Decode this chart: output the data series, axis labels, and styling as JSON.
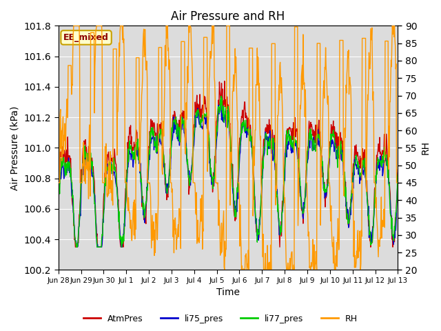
{
  "title": "Air Pressure and RH",
  "xlabel": "Time",
  "ylabel_left": "Air Pressure (kPa)",
  "ylabel_right": "RH",
  "ylim_left": [
    100.2,
    101.8
  ],
  "ylim_right": [
    20,
    90
  ],
  "yticks_left": [
    100.2,
    100.4,
    100.6,
    100.8,
    101.0,
    101.2,
    101.4,
    101.6,
    101.8
  ],
  "yticks_right": [
    20,
    25,
    30,
    35,
    40,
    45,
    50,
    55,
    60,
    65,
    70,
    75,
    80,
    85,
    90
  ],
  "bg_color": "#dcdcdc",
  "annotation_text": "EE_mixed",
  "annotation_color": "#8B0000",
  "annotation_bg": "#ffffcc",
  "annotation_border": "#c8a000",
  "legend_items": [
    "AtmPres",
    "li75_pres",
    "li77_pres",
    "RH"
  ],
  "legend_colors": [
    "#cc0000",
    "#0000cc",
    "#00cc00",
    "#ff9900"
  ],
  "line_colors": {
    "AtmPres": "#cc0000",
    "li75_pres": "#0000cc",
    "li77_pres": "#00cc00",
    "RH": "#ff9900"
  },
  "x_tick_labels": [
    "Jun 28",
    "Jun 29",
    "Jun 30",
    "Jul 1",
    "Jul 2",
    "Jul 3",
    "Jul 4",
    "Jul 5",
    "Jul 6",
    "Jul 7",
    "Jul 8",
    "Jul 9",
    "Jul 10",
    "Jul 11",
    "Jul 12",
    "Jul 13"
  ],
  "n_points": 800
}
